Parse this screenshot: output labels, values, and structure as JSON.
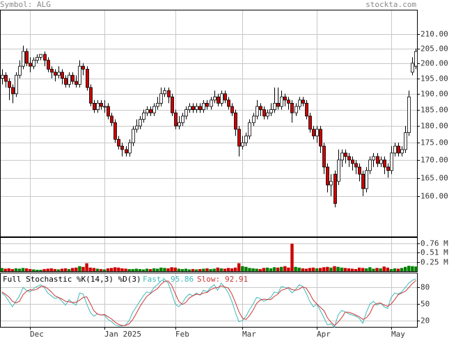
{
  "header": {
    "symbol": "Symbol: ALG",
    "site": "stockta.com"
  },
  "chart_data": [
    {
      "type": "candlestick",
      "log_scale": true,
      "grid": true,
      "up_color": "#ffffff",
      "down_color": "#cc0000",
      "categories": [
        null,
        null,
        null,
        null,
        null,
        null,
        null,
        null,
        "Dec",
        null,
        null,
        null,
        null,
        null,
        null,
        null,
        null,
        null,
        null,
        null,
        null,
        null,
        null,
        null,
        null,
        null,
        null,
        null,
        null,
        "Jan 2025",
        null,
        null,
        null,
        null,
        null,
        null,
        null,
        null,
        null,
        null,
        null,
        null,
        null,
        null,
        null,
        null,
        null,
        null,
        null,
        "Feb",
        null,
        null,
        null,
        null,
        null,
        null,
        null,
        null,
        null,
        null,
        null,
        null,
        null,
        null,
        null,
        null,
        null,
        null,
        "Mar",
        null,
        null,
        null,
        null,
        null,
        null,
        null,
        null,
        null,
        null,
        null,
        null,
        null,
        null,
        null,
        null,
        null,
        null,
        null,
        null,
        "Apr",
        null,
        null,
        null,
        null,
        null,
        null,
        null,
        null,
        null,
        null,
        null,
        null,
        null,
        null,
        null,
        null,
        null,
        null,
        null,
        null,
        "May",
        null,
        null,
        null,
        null,
        null,
        null,
        null
      ],
      "open": [
        195,
        196,
        194,
        192,
        190,
        196,
        199,
        204,
        200,
        199,
        201,
        202,
        203,
        201,
        198,
        197,
        196,
        197,
        195,
        193,
        196,
        194,
        193,
        199,
        198,
        192,
        187,
        185,
        187,
        186,
        186,
        183,
        181,
        176,
        174,
        173,
        172,
        175,
        179,
        180,
        182,
        184,
        185,
        184,
        186,
        187,
        190,
        191,
        189,
        184,
        180,
        181,
        183,
        185,
        186,
        185,
        186,
        185,
        187,
        186,
        188,
        189,
        187,
        190,
        188,
        186,
        184,
        179,
        174,
        175,
        177,
        181,
        183,
        186,
        185,
        183,
        184,
        185,
        187,
        186,
        189,
        188,
        187,
        184,
        186,
        188,
        187,
        183,
        179,
        177,
        179,
        174,
        168,
        163,
        166,
        164,
        170,
        172,
        171,
        170,
        169,
        168,
        166,
        162,
        167,
        170,
        171,
        169,
        170,
        168,
        167,
        172,
        174,
        172,
        173,
        178,
        197,
        199
      ],
      "high": [
        198,
        197,
        195,
        193,
        197,
        201,
        206,
        205,
        202,
        202,
        203,
        203,
        204,
        202,
        199,
        198,
        199,
        198,
        196,
        197,
        197,
        196,
        201,
        200,
        199,
        193,
        188,
        188,
        188,
        188,
        187,
        184,
        182,
        177,
        175,
        174,
        176,
        180,
        182,
        183,
        185,
        186,
        186,
        187,
        189,
        192,
        192,
        192,
        190,
        185,
        183,
        184,
        186,
        187,
        187,
        187,
        187,
        188,
        188,
        189,
        191,
        190,
        191,
        191,
        189,
        187,
        185,
        180,
        177,
        178,
        182,
        184,
        188,
        187,
        186,
        185,
        187,
        192,
        192,
        191,
        190,
        189,
        188,
        187,
        189,
        189,
        188,
        184,
        180,
        180,
        180,
        175,
        169,
        166,
        167,
        173,
        173,
        173,
        172,
        171,
        170,
        169,
        167,
        168,
        171,
        172,
        172,
        171,
        171,
        169,
        174,
        175,
        175,
        174,
        180,
        191,
        202,
        205
      ],
      "low": [
        193,
        192,
        188,
        187,
        189,
        195,
        198,
        199,
        197,
        198,
        200,
        201,
        199,
        197,
        195,
        194,
        195,
        193,
        192,
        192,
        193,
        192,
        192,
        196,
        191,
        186,
        184,
        184,
        185,
        184,
        182,
        180,
        175,
        173,
        171,
        171,
        171,
        174,
        178,
        179,
        181,
        183,
        183,
        183,
        185,
        186,
        189,
        187,
        183,
        179,
        179,
        180,
        182,
        184,
        184,
        184,
        184,
        184,
        185,
        185,
        187,
        186,
        186,
        187,
        185,
        183,
        177,
        171,
        173,
        174,
        176,
        180,
        182,
        183,
        182,
        182,
        183,
        184,
        185,
        185,
        186,
        185,
        181,
        183,
        185,
        186,
        182,
        178,
        176,
        175,
        172,
        166,
        161,
        160,
        157,
        163,
        168,
        169,
        168,
        167,
        166,
        164,
        160,
        161,
        166,
        168,
        168,
        168,
        166,
        165,
        166,
        171,
        171,
        171,
        172,
        177,
        196,
        198
      ],
      "close": [
        196,
        194,
        192,
        190,
        196,
        199,
        204,
        200,
        199,
        201,
        202,
        203,
        201,
        198,
        197,
        196,
        197,
        195,
        193,
        196,
        194,
        193,
        199,
        198,
        192,
        187,
        185,
        187,
        186,
        186,
        183,
        181,
        176,
        174,
        173,
        172,
        175,
        179,
        180,
        182,
        184,
        185,
        184,
        186,
        187,
        190,
        191,
        189,
        184,
        180,
        181,
        183,
        185,
        186,
        185,
        186,
        185,
        187,
        186,
        188,
        189,
        187,
        190,
        188,
        186,
        184,
        179,
        174,
        175,
        177,
        181,
        183,
        186,
        185,
        183,
        184,
        185,
        187,
        186,
        189,
        188,
        187,
        184,
        186,
        188,
        187,
        183,
        179,
        177,
        179,
        174,
        168,
        163,
        164,
        158,
        170,
        172,
        171,
        170,
        169,
        168,
        166,
        162,
        167,
        170,
        171,
        169,
        170,
        168,
        167,
        172,
        174,
        172,
        173,
        178,
        189,
        200,
        204
      ],
      "ylim": [
        149.5,
        218.8
      ],
      "yticks": [
        {
          "value": 160,
          "label": "160.00"
        },
        {
          "value": 165,
          "label": "165.00"
        },
        {
          "value": 170,
          "label": "170.00"
        },
        {
          "value": 175,
          "label": "175.00"
        },
        {
          "value": 180,
          "label": "180.00"
        },
        {
          "value": 185,
          "label": "185.00"
        },
        {
          "value": 190,
          "label": "190.00"
        },
        {
          "value": 195,
          "label": "195.00"
        },
        {
          "value": 200,
          "label": "200.00"
        },
        {
          "value": 205,
          "label": "205.00"
        },
        {
          "value": 210,
          "label": "210.00"
        }
      ]
    },
    {
      "type": "bar",
      "grid": true,
      "up_color": "#008000",
      "down_color": "#cc0000",
      "values": [
        0.09,
        0.07,
        0.08,
        0.06,
        0.08,
        0.07,
        0.09,
        0.08,
        0.06,
        0.05,
        0.04,
        0.04,
        0.06,
        0.07,
        0.08,
        0.06,
        0.05,
        0.07,
        0.08,
        0.06,
        0.09,
        0.1,
        0.14,
        0.12,
        0.22,
        0.1,
        0.09,
        0.07,
        0.06,
        0.05,
        0.08,
        0.09,
        0.11,
        0.1,
        0.08,
        0.07,
        0.06,
        0.06,
        0.07,
        0.06,
        0.05,
        0.07,
        0.06,
        0.08,
        0.07,
        0.1,
        0.09,
        0.08,
        0.11,
        0.1,
        0.07,
        0.06,
        0.07,
        0.05,
        0.06,
        0.05,
        0.06,
        0.07,
        0.08,
        0.06,
        0.07,
        0.1,
        0.08,
        0.07,
        0.09,
        0.08,
        0.1,
        0.22,
        0.14,
        0.12,
        0.09,
        0.08,
        0.07,
        0.06,
        0.09,
        0.1,
        0.08,
        0.11,
        0.1,
        0.12,
        0.14,
        0.1,
        0.76,
        0.12,
        0.1,
        0.08,
        0.07,
        0.09,
        0.1,
        0.08,
        0.09,
        0.11,
        0.12,
        0.1,
        0.14,
        0.12,
        0.1,
        0.09,
        0.08,
        0.07,
        0.06,
        0.1,
        0.09,
        0.08,
        0.11,
        0.07,
        0.09,
        0.08,
        0.13,
        0.1,
        0.06,
        0.08,
        0.07,
        0.09,
        0.12,
        0.15,
        0.14,
        0.13
      ],
      "ylim": [
        0,
        0.94
      ],
      "yticks": [
        {
          "value": 0.25,
          "label": "0.25 M"
        },
        {
          "value": 0.51,
          "label": "0.51 M"
        },
        {
          "value": 0.76,
          "label": "0.76 M"
        }
      ]
    },
    {
      "type": "line",
      "title": "Full Stochastic %K(14,3) %D(3)",
      "grid": true,
      "series": [
        {
          "name": "Fast:",
          "color": "#3fb8b8",
          "values": [
            70,
            65,
            55,
            45,
            55,
            65,
            80,
            75,
            72,
            78,
            82,
            85,
            80,
            70,
            65,
            60,
            62,
            55,
            48,
            58,
            52,
            48,
            70,
            68,
            50,
            35,
            28,
            32,
            30,
            30,
            22,
            18,
            12,
            10,
            10,
            12,
            20,
            35,
            45,
            55,
            65,
            72,
            70,
            80,
            85,
            92,
            95,
            88,
            70,
            50,
            45,
            52,
            62,
            68,
            65,
            70,
            66,
            75,
            72,
            80,
            85,
            75,
            88,
            80,
            70,
            55,
            35,
            18,
            20,
            28,
            40,
            50,
            62,
            60,
            55,
            58,
            62,
            72,
            70,
            82,
            80,
            78,
            70,
            76,
            85,
            82,
            70,
            55,
            45,
            50,
            38,
            25,
            12,
            14,
            8,
            30,
            38,
            36,
            32,
            30,
            28,
            24,
            15,
            35,
            50,
            55,
            48,
            52,
            45,
            42,
            62,
            70,
            68,
            72,
            80,
            88,
            93,
            95.86
          ]
        },
        {
          "name": "Slow:",
          "color": "#cc3333",
          "values": [
            72,
            68,
            63,
            55,
            52,
            55,
            67,
            73,
            76,
            75,
            77,
            82,
            82,
            78,
            72,
            65,
            62,
            59,
            55,
            54,
            53,
            53,
            57,
            62,
            63,
            51,
            38,
            32,
            30,
            31,
            27,
            23,
            17,
            13,
            11,
            11,
            14,
            22,
            33,
            45,
            55,
            64,
            69,
            74,
            78,
            86,
            91,
            92,
            84,
            69,
            55,
            49,
            53,
            61,
            65,
            68,
            67,
            70,
            71,
            76,
            79,
            80,
            83,
            81,
            79,
            68,
            53,
            36,
            24,
            22,
            29,
            39,
            51,
            57,
            59,
            58,
            58,
            64,
            68,
            75,
            77,
            80,
            76,
            75,
            77,
            81,
            79,
            69,
            57,
            50,
            44,
            38,
            25,
            17,
            11,
            17,
            25,
            35,
            35,
            33,
            30,
            27,
            22,
            25,
            33,
            47,
            51,
            52,
            48,
            46,
            50,
            58,
            67,
            70,
            73,
            80,
            87,
            92.91
          ]
        }
      ],
      "ylim": [
        8.5,
        107
      ],
      "yticks": [
        20,
        50,
        80
      ]
    }
  ]
}
